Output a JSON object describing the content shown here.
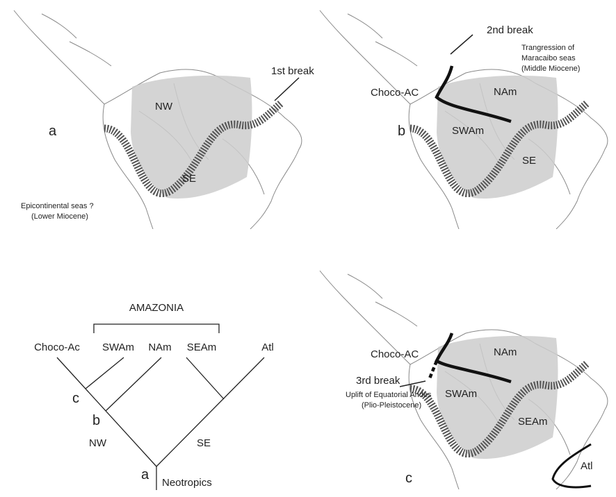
{
  "map_a": {
    "letter": "a",
    "regions": [
      "NW",
      "SE"
    ],
    "break_label": "1st break",
    "note": [
      "Epicontinental seas ?",
      "(Lower Miocene)"
    ]
  },
  "map_b": {
    "letter": "b",
    "regions": [
      "Choco-AC",
      "NAm",
      "SWAm",
      "SE"
    ],
    "break_label": "2nd break",
    "note": [
      "Trangression of",
      "Maracaibo seas",
      "(Middle Miocene)"
    ]
  },
  "map_c": {
    "letter": "c",
    "regions": [
      "Choco-AC",
      "NAm",
      "SWAm",
      "SEAm",
      "Atl"
    ],
    "break_label": "3rd break",
    "note": [
      "Uplift of Equatorial Andes",
      "(Plio-Pleistocene)"
    ]
  },
  "cladogram": {
    "group": "AMAZONIA",
    "terminals": [
      "Choco-Ac",
      "SWAm",
      "NAm",
      "SEAm",
      "Atl"
    ],
    "nodes": [
      "a",
      "b",
      "c"
    ],
    "branches": [
      "NW",
      "SE"
    ],
    "root": "Neotropics"
  }
}
